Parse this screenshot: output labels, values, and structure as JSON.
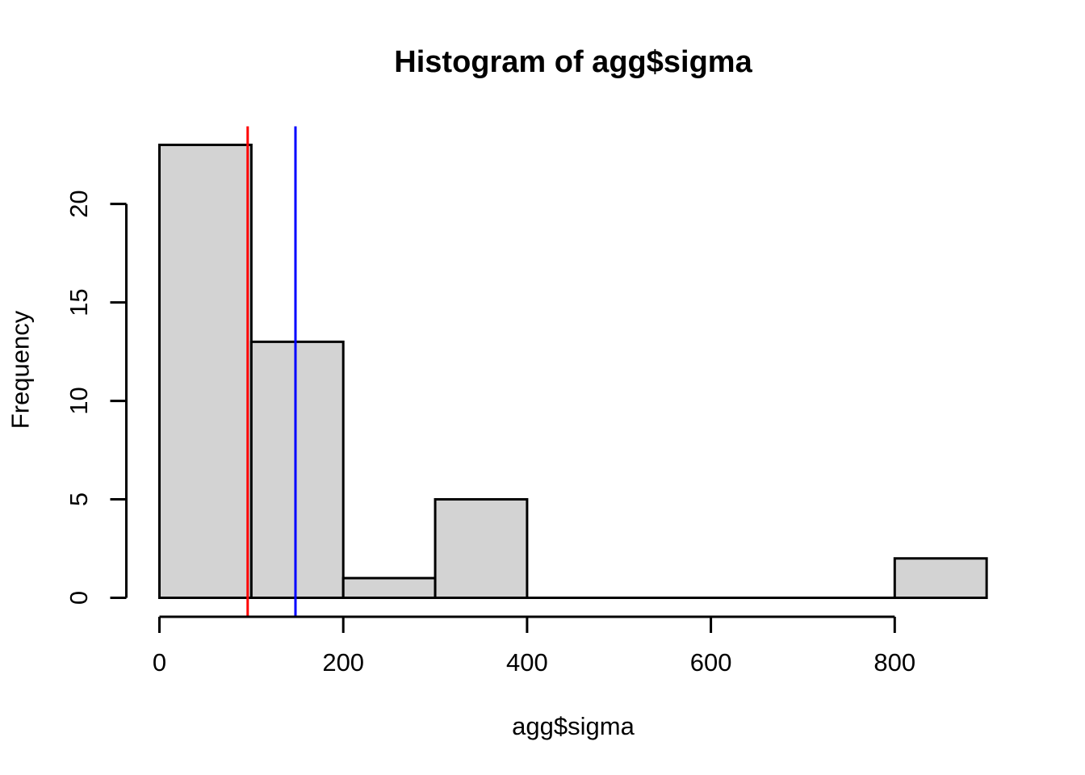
{
  "chart_data": {
    "type": "bar",
    "subtype": "histogram",
    "title": "Histogram of agg$sigma",
    "xlabel": "agg$sigma",
    "ylabel": "Frequency",
    "bin_breaks": [
      0,
      100,
      200,
      300,
      400,
      500,
      600,
      700,
      800,
      900
    ],
    "counts": [
      23,
      13,
      1,
      5,
      0,
      0,
      0,
      0,
      2
    ],
    "x_ticks": [
      0,
      200,
      400,
      600,
      800
    ],
    "y_ticks": [
      0,
      5,
      10,
      15,
      20
    ],
    "xlim": [
      0,
      900
    ],
    "ylim": [
      0,
      23
    ],
    "grid": false,
    "legend": null,
    "bar_fill": "#d3d3d3",
    "bar_border": "#000000",
    "axis_color": "#000000",
    "background": "#ffffff",
    "vlines": [
      {
        "x": 96,
        "color": "#ff0000",
        "color_name": "red"
      },
      {
        "x": 148,
        "color": "#0000ff",
        "color_name": "blue"
      }
    ]
  }
}
